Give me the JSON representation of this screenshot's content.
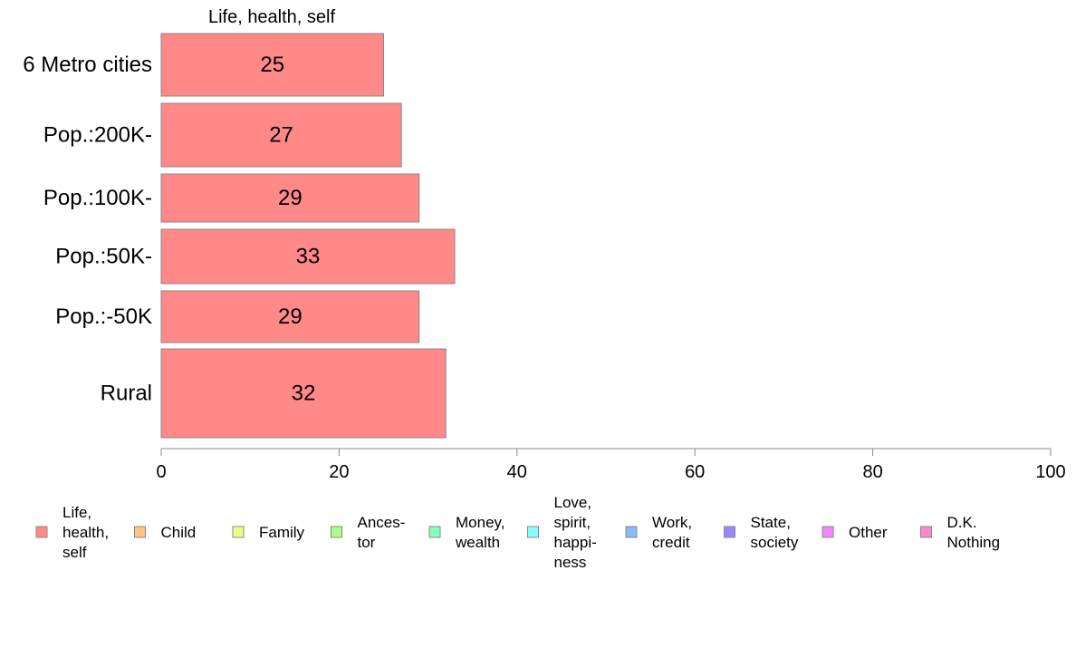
{
  "chart_data": {
    "type": "bar",
    "orientation": "horizontal",
    "title": "Life, health, self",
    "categories": [
      "6 Metro cities",
      "Pop.:200K-",
      "Pop.:100K-",
      "Pop.:50K-",
      "Pop.:-50K",
      "Rural"
    ],
    "series": [
      {
        "name": "Life, health, self",
        "values": [
          25,
          27,
          29,
          33,
          29,
          32
        ],
        "value_labels": [
          "25",
          "27",
          "29",
          "33",
          "29",
          "32"
        ],
        "color": "#ff8888"
      }
    ],
    "xlim": [
      0,
      100
    ],
    "xticks": [
      "0",
      "20",
      "40",
      "60",
      "80",
      "100"
    ],
    "grid": false,
    "legend_position": "bottom",
    "legend": [
      {
        "lines": [
          "Life,",
          "health,",
          "self"
        ],
        "color": "#ff8888"
      },
      {
        "lines": [
          "Child"
        ],
        "color": "#ffc488"
      },
      {
        "lines": [
          "Family"
        ],
        "color": "#eeff88"
      },
      {
        "lines": [
          "Ances-",
          "tor"
        ],
        "color": "#aaff88"
      },
      {
        "lines": [
          "Money,",
          "wealth"
        ],
        "color": "#88ffbb"
      },
      {
        "lines": [
          "Love,",
          "spirit,",
          "happi-",
          "ness"
        ],
        "color": "#88ffff"
      },
      {
        "lines": [
          "Work,",
          "credit"
        ],
        "color": "#88bbff"
      },
      {
        "lines": [
          "State,",
          "society"
        ],
        "color": "#9988ff"
      },
      {
        "lines": [
          "Other"
        ],
        "color": "#ee88ff"
      },
      {
        "lines": [
          "D.K.",
          "Nothing"
        ],
        "color": "#ff88cc"
      }
    ]
  }
}
